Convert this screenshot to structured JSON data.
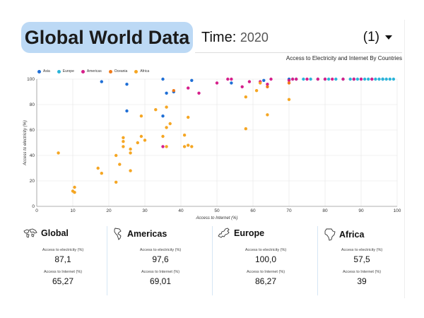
{
  "header": {
    "title": "Global World Data",
    "time_label": "Time:",
    "time_value": "2020",
    "selector_label": "(1)"
  },
  "chart_data": {
    "type": "scatter",
    "title": "Access to Electricity and Internet By Countries",
    "xlabel": "Access to Internet (%)",
    "ylabel": "Access to electricity (%)",
    "xlim": [
      0,
      100
    ],
    "ylim": [
      0,
      100
    ],
    "x_ticks": [
      "0",
      "10",
      "20",
      "30",
      "40",
      "50",
      "60",
      "70",
      "80",
      "90",
      "100"
    ],
    "y_ticks": [
      "0",
      "20",
      "40",
      "60",
      "80",
      "100"
    ],
    "grid": true,
    "legend_position": "top-left",
    "series": [
      {
        "name": "Asia",
        "color": "#1f6fd6",
        "points": [
          [
            18,
            98
          ],
          [
            25,
            96
          ],
          [
            25,
            75
          ],
          [
            35,
            100
          ],
          [
            35,
            71
          ],
          [
            36,
            89
          ],
          [
            38,
            90
          ],
          [
            43,
            99
          ],
          [
            54,
            97
          ],
          [
            63,
            99
          ],
          [
            70,
            100
          ],
          [
            88,
            100
          ],
          [
            96,
            100
          ]
        ]
      },
      {
        "name": "Europe",
        "color": "#2bb4d9",
        "points": [
          [
            71,
            100
          ],
          [
            72,
            100
          ],
          [
            74,
            100
          ],
          [
            76,
            100
          ],
          [
            78,
            100
          ],
          [
            80,
            100
          ],
          [
            81,
            100
          ],
          [
            83,
            100
          ],
          [
            85,
            100
          ],
          [
            87,
            100
          ],
          [
            88,
            100
          ],
          [
            89,
            100
          ],
          [
            90,
            100
          ],
          [
            91,
            100
          ],
          [
            92,
            100
          ],
          [
            93,
            100
          ],
          [
            94,
            100
          ],
          [
            95,
            100
          ],
          [
            96,
            100
          ],
          [
            97,
            100
          ],
          [
            98,
            100
          ],
          [
            99,
            100
          ]
        ]
      },
      {
        "name": "Americas",
        "color": "#d61f8b",
        "points": [
          [
            35,
            47
          ],
          [
            42,
            93
          ],
          [
            45,
            89
          ],
          [
            50,
            97
          ],
          [
            53,
            100
          ],
          [
            54,
            100
          ],
          [
            57,
            94
          ],
          [
            59,
            98
          ],
          [
            62,
            98
          ],
          [
            64,
            96
          ],
          [
            65,
            100
          ],
          [
            70,
            99
          ],
          [
            71,
            100
          ],
          [
            72,
            100
          ],
          [
            75,
            100
          ],
          [
            78,
            100
          ],
          [
            80,
            100
          ],
          [
            82,
            100
          ],
          [
            85,
            100
          ],
          [
            88,
            100
          ],
          [
            90,
            100
          ],
          [
            93,
            100
          ]
        ]
      },
      {
        "name": "Oceania",
        "color": "#f07a1a",
        "points": [
          [
            38,
            91
          ],
          [
            64,
            94
          ],
          [
            70,
            97
          ]
        ]
      },
      {
        "name": "Africa",
        "color": "#f5a623",
        "points": [
          [
            6,
            42
          ],
          [
            10,
            12
          ],
          [
            10.5,
            11
          ],
          [
            10.5,
            15
          ],
          [
            17,
            30
          ],
          [
            18,
            26
          ],
          [
            22,
            19
          ],
          [
            22,
            40
          ],
          [
            23,
            33
          ],
          [
            24,
            47
          ],
          [
            24,
            51
          ],
          [
            24,
            54
          ],
          [
            26,
            28
          ],
          [
            26,
            42
          ],
          [
            26,
            45
          ],
          [
            28,
            50
          ],
          [
            29,
            55
          ],
          [
            29,
            71
          ],
          [
            30,
            52
          ],
          [
            33,
            76
          ],
          [
            35,
            55
          ],
          [
            36,
            47
          ],
          [
            36,
            62
          ],
          [
            36,
            78
          ],
          [
            37,
            65
          ],
          [
            41,
            56
          ],
          [
            41,
            47
          ],
          [
            42,
            48
          ],
          [
            42,
            70
          ],
          [
            43,
            47
          ],
          [
            58,
            61
          ],
          [
            58,
            86
          ],
          [
            61,
            91
          ],
          [
            62,
            97
          ],
          [
            64,
            72
          ],
          [
            70,
            84
          ]
        ]
      }
    ]
  },
  "stats": [
    {
      "name": "Global",
      "icon": "world-map-icon",
      "electricity_label": "Access to electricity (%)",
      "electricity": "87,1",
      "internet_label": "Access to Internet (%)",
      "internet": "65,27"
    },
    {
      "name": "Americas",
      "icon": "americas-map-icon",
      "electricity_label": "Access to electricity (%)",
      "electricity": "97,6",
      "internet_label": "Access to Internet (%)",
      "internet": "69,01"
    },
    {
      "name": "Europe",
      "icon": "europe-map-icon",
      "electricity_label": "Access to electricity (%)",
      "electricity": "100,0",
      "internet_label": "Access to Internet (%)",
      "internet": "86,27"
    },
    {
      "name": "Africa",
      "icon": "africa-map-icon",
      "electricity_label": "Access to electricity (%)",
      "electricity": "57,5",
      "internet_label": "Access to Internet (%)",
      "internet": "39"
    }
  ]
}
